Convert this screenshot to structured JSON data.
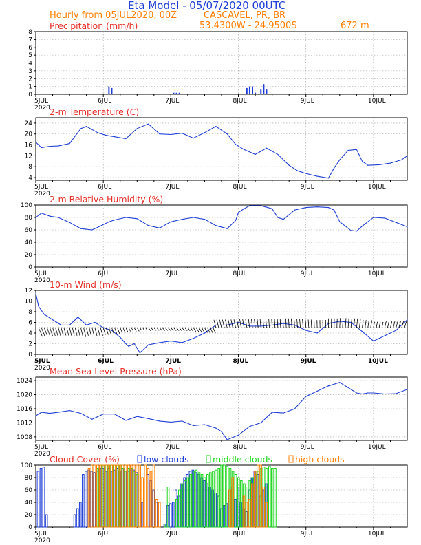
{
  "header": {
    "title": "Eta Model - 05/07/2020 00UTC",
    "subtitle": "Hourly from 05JUL2020, 00Z",
    "location": "CASCAVEL, PR, BR",
    "coords": "53.4300W - 24.9500S",
    "elevation": "672  m"
  },
  "colors": {
    "title": "#1f3fd6",
    "subtitle": "#ff7f00",
    "panel_title": "#e6322a",
    "line": "#1f3fd6",
    "low": "#1f3fd6",
    "middle": "#1fd61f",
    "high": "#ff7f00"
  },
  "x_axis": {
    "start_hour": 0,
    "end_hour": 132,
    "day_ticks": [
      {
        "hour": 0,
        "label": "5JUL"
      },
      {
        "hour": 24,
        "label": "6JUL"
      },
      {
        "hour": 48,
        "label": "7JUL"
      },
      {
        "hour": 72,
        "label": "8JUL"
      },
      {
        "hour": 96,
        "label": "9JUL"
      },
      {
        "hour": 120,
        "label": "10JUL"
      }
    ],
    "year_label": "2020"
  },
  "chart_data": [
    {
      "type": "bar",
      "title": "Precipitation (mm/h)",
      "ylim": [
        0,
        8
      ],
      "yticks": [
        "0",
        "1",
        "2",
        "3",
        "4",
        "5",
        "6",
        "7",
        "8"
      ],
      "x": [
        26,
        27,
        30,
        49,
        50,
        51,
        75,
        76,
        77,
        78,
        80,
        81,
        82
      ],
      "values": [
        1.0,
        0.8,
        0.1,
        0.2,
        0.2,
        0.2,
        0.8,
        1.0,
        1.0,
        0.2,
        0.6,
        1.3,
        0.6
      ]
    },
    {
      "type": "line",
      "title": "2-m Temperature (C)",
      "ylim": [
        3,
        26
      ],
      "yticks": [
        "4",
        "8",
        "12",
        "16",
        "20",
        "24"
      ],
      "x": [
        0,
        2,
        5,
        8,
        12,
        16,
        18,
        22,
        25,
        28,
        32,
        36,
        40,
        44,
        48,
        52,
        56,
        60,
        64,
        68,
        71,
        74,
        78,
        82,
        86,
        90,
        93,
        96,
        100,
        104,
        106,
        108,
        111,
        114,
        116,
        118,
        122,
        126,
        130,
        132
      ],
      "values": [
        17,
        15,
        15.5,
        15.6,
        16.5,
        22,
        22.8,
        20.5,
        19.5,
        19,
        18.3,
        22,
        23.7,
        20,
        19.8,
        20.3,
        18.5,
        20.5,
        22.8,
        20,
        16.2,
        14.3,
        12.5,
        14.8,
        12.5,
        8.5,
        6.5,
        5.5,
        4.5,
        3.8,
        7.5,
        10.5,
        14,
        14.3,
        10,
        8.5,
        8.7,
        9.3,
        10.5,
        12
      ]
    },
    {
      "type": "line",
      "title": "2-m Relative Humidity (%)",
      "ylim": [
        0,
        100
      ],
      "yticks": [
        "0",
        "20",
        "40",
        "60",
        "80",
        "100"
      ],
      "x": [
        0,
        2,
        5,
        8,
        12,
        16,
        20,
        22,
        26,
        28,
        32,
        36,
        40,
        44,
        48,
        52,
        56,
        60,
        62,
        64,
        68,
        71,
        72,
        74,
        76,
        80,
        84,
        86,
        88,
        92,
        96,
        100,
        104,
        106,
        108,
        112,
        114,
        116,
        120,
        124,
        128,
        132
      ],
      "values": [
        80,
        87,
        82,
        80,
        72,
        62,
        60,
        64,
        73,
        76,
        80,
        78,
        67,
        63,
        73,
        77,
        80,
        77,
        72,
        67,
        62,
        75,
        88,
        94,
        99,
        99,
        94,
        80,
        77,
        92,
        96,
        97,
        96,
        92,
        73,
        59,
        58,
        66,
        80,
        79,
        72,
        65
      ]
    },
    {
      "type": "line",
      "title": "10-m Wind (m/s)",
      "ylim": [
        0,
        12
      ],
      "yticks": [
        "0",
        "2",
        "4",
        "6",
        "8",
        "10",
        "12"
      ],
      "x": [
        0,
        1,
        3,
        6,
        9,
        12,
        15,
        18,
        21,
        24,
        27,
        30,
        32,
        33,
        35,
        37,
        40,
        44,
        48,
        52,
        56,
        60,
        64,
        68,
        72,
        76,
        80,
        84,
        88,
        92,
        96,
        100,
        104,
        108,
        112,
        116,
        120,
        124,
        128,
        132
      ],
      "values": [
        11.5,
        9,
        7.5,
        6.5,
        5.5,
        5.5,
        7,
        5.5,
        6,
        5,
        4.5,
        3.2,
        2,
        1.5,
        2,
        0.3,
        1.8,
        2.2,
        2.5,
        2.2,
        3,
        4,
        5.5,
        5.5,
        6,
        5.3,
        5.3,
        5.5,
        5.8,
        5.5,
        4.5,
        4,
        5.8,
        6.2,
        6,
        4.3,
        2.5,
        3.5,
        4.5,
        6.5
      ]
    },
    {
      "type": "line",
      "title": "Mean Sea Level Pressure (hPa)",
      "ylim": [
        1007,
        1025
      ],
      "yticks": [
        "1008",
        "1012",
        "1016",
        "1020",
        "1024"
      ],
      "x": [
        0,
        2,
        5,
        8,
        12,
        16,
        20,
        24,
        28,
        32,
        36,
        40,
        44,
        48,
        52,
        56,
        60,
        64,
        66,
        68,
        72,
        76,
        80,
        84,
        88,
        92,
        96,
        100,
        104,
        108,
        112,
        114,
        116,
        118,
        120,
        124,
        128,
        132
      ],
      "values": [
        1014,
        1015,
        1014.7,
        1015,
        1015.5,
        1014.7,
        1013,
        1014.5,
        1014.5,
        1012.7,
        1013.8,
        1013.2,
        1012.5,
        1012.2,
        1012.5,
        1011.2,
        1011.5,
        1010.5,
        1009.5,
        1007.2,
        1008.5,
        1011,
        1012,
        1015,
        1014.8,
        1016,
        1019.5,
        1021,
        1022.5,
        1023.5,
        1021.5,
        1020.5,
        1020.2,
        1020.5,
        1020.5,
        1020.2,
        1020.3,
        1021.5
      ]
    },
    {
      "type": "bar",
      "title": "Cloud Cover (%)",
      "ylim": [
        0,
        100
      ],
      "yticks": [
        "0",
        "20",
        "40",
        "60",
        "80",
        "100"
      ],
      "legend": [
        "low clouds",
        "middle clouds",
        "high clouds"
      ],
      "series": [
        {
          "name": "low clouds",
          "x": [
            1,
            2,
            3,
            4,
            14,
            15,
            16,
            17,
            18,
            19,
            20,
            21,
            22,
            23,
            24,
            25,
            26,
            27,
            28,
            29,
            30,
            31,
            32,
            33,
            34,
            35,
            36,
            38,
            40,
            41,
            42,
            43,
            46,
            47,
            48,
            49,
            50,
            51,
            52,
            53,
            54,
            55,
            56,
            57,
            58,
            59,
            60,
            61,
            62,
            63,
            64,
            65,
            66,
            67,
            68,
            69,
            70,
            71,
            72,
            73,
            74,
            75,
            76,
            77,
            78,
            79,
            80,
            81,
            82
          ],
          "values": [
            90,
            95,
            97,
            20,
            20,
            30,
            40,
            85,
            90,
            92,
            90,
            88,
            90,
            95,
            95,
            90,
            95,
            90,
            92,
            95,
            90,
            95,
            90,
            90,
            95,
            92,
            88,
            40,
            85,
            75,
            60,
            40,
            5,
            35,
            38,
            40,
            60,
            50,
            70,
            80,
            85,
            90,
            92,
            88,
            85,
            80,
            75,
            70,
            65,
            60,
            55,
            50,
            30,
            35,
            38,
            60,
            65,
            45,
            65,
            40,
            30,
            25,
            60,
            80,
            90,
            85,
            50,
            60,
            70
          ]
        },
        {
          "name": "middle clouds",
          "x": [
            22,
            23,
            24,
            25,
            26,
            27,
            28,
            29,
            30,
            31,
            32,
            33,
            34,
            35,
            36,
            46,
            47,
            50,
            51,
            52,
            53,
            54,
            55,
            56,
            57,
            58,
            59,
            60,
            61,
            62,
            63,
            64,
            65,
            66,
            67,
            68,
            69,
            70,
            71,
            72,
            73,
            74,
            75,
            76,
            77,
            78,
            79,
            80,
            81,
            82,
            83,
            84,
            85
          ],
          "values": [
            95,
            100,
            100,
            100,
            100,
            100,
            100,
            100,
            100,
            95,
            90,
            95,
            95,
            90,
            85,
            5,
            65,
            45,
            60,
            70,
            75,
            80,
            85,
            90,
            92,
            88,
            85,
            80,
            85,
            88,
            90,
            92,
            95,
            100,
            100,
            98,
            95,
            90,
            85,
            80,
            75,
            70,
            65,
            75,
            80,
            85,
            90,
            95,
            97,
            95,
            98,
            95,
            95
          ]
        },
        {
          "name": "high clouds",
          "x": [
            19,
            20,
            21,
            22,
            23,
            24,
            25,
            26,
            27,
            28,
            29,
            30,
            31,
            32,
            33,
            34,
            35,
            36,
            37,
            38,
            39,
            40,
            41,
            42,
            43,
            44,
            69,
            70,
            74,
            75,
            76,
            77,
            78,
            79,
            80,
            81,
            82
          ],
          "values": [
            95,
            100,
            100,
            100,
            100,
            100,
            100,
            100,
            100,
            100,
            100,
            100,
            100,
            100,
            100,
            100,
            100,
            100,
            100,
            80,
            100,
            95,
            90,
            100,
            45,
            40,
            60,
            80,
            50,
            40,
            45,
            70,
            90,
            100,
            100,
            65,
            40
          ]
        }
      ]
    }
  ]
}
